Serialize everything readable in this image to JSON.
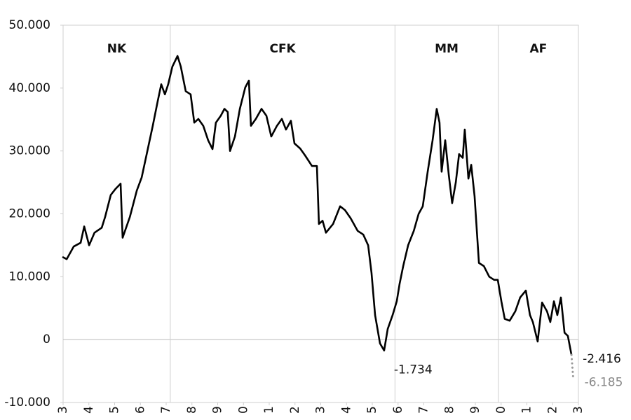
{
  "chart_data": {
    "type": "line",
    "xlim": [
      2003,
      2023
    ],
    "ylim": [
      -10000,
      50000
    ],
    "yticks": [
      {
        "value": -10000,
        "label": "-10.000"
      },
      0,
      {
        "value": 10000,
        "label": "10.000"
      },
      {
        "value": 20000,
        "label": "20.000"
      },
      {
        "value": 30000,
        "label": "30.000"
      },
      {
        "value": 40000,
        "label": "40.000"
      },
      {
        "value": 50000,
        "label": "50.000"
      }
    ],
    "xticks": [
      {
        "value": 2003,
        "label": "3"
      },
      {
        "value": 2004,
        "label": "4"
      },
      {
        "value": 2005,
        "label": "5"
      },
      {
        "value": 2006,
        "label": "6"
      },
      {
        "value": 2007,
        "label": "7"
      },
      {
        "value": 2008,
        "label": "8"
      },
      {
        "value": 2009,
        "label": "9"
      },
      {
        "value": 2010,
        "label": "0"
      },
      {
        "value": 2011,
        "label": "1"
      },
      {
        "value": 2012,
        "label": "2"
      },
      {
        "value": 2013,
        "label": "3"
      },
      {
        "value": 2014,
        "label": "4"
      },
      {
        "value": 2015,
        "label": "5"
      },
      {
        "value": 2016,
        "label": "6"
      },
      {
        "value": 2017,
        "label": "7"
      },
      {
        "value": 2018,
        "label": "8"
      },
      {
        "value": 2019,
        "label": "9"
      },
      {
        "value": 2020,
        "label": "0"
      },
      {
        "value": 2021,
        "label": "1"
      },
      {
        "value": 2022,
        "label": "2"
      },
      {
        "value": 2023,
        "label": "3"
      }
    ],
    "periods": [
      {
        "name": "NK",
        "start": 2003,
        "end": 2007.16
      },
      {
        "name": "CFK",
        "start": 2007.16,
        "end": 2015.88
      },
      {
        "name": "MM",
        "start": 2015.88,
        "end": 2019.89
      },
      {
        "name": "AF",
        "start": 2019.89,
        "end": 2023
      }
    ],
    "series": [
      {
        "color": "#000000",
        "style": "solid",
        "x": [
          2003,
          2003.14,
          2003.41,
          2003.68,
          2003.82,
          2004.01,
          2004.22,
          2004.5,
          2004.63,
          2004.85,
          2005.04,
          2005.23,
          2005.31,
          2005.59,
          2005.86,
          2006.05,
          2006.27,
          2006.48,
          2006.67,
          2006.81,
          2006.95,
          2007.08,
          2007.24,
          2007.44,
          2007.57,
          2007.76,
          2007.95,
          2008.09,
          2008.25,
          2008.44,
          2008.63,
          2008.8,
          2008.93,
          2009.12,
          2009.26,
          2009.39,
          2009.48,
          2009.67,
          2009.86,
          2010.07,
          2010.21,
          2010.29,
          2010.48,
          2010.7,
          2010.89,
          2011.08,
          2011.3,
          2011.49,
          2011.65,
          2011.84,
          2011.98,
          2012.2,
          2012.39,
          2012.66,
          2012.85,
          2012.93,
          2013.07,
          2013.2,
          2013.48,
          2013.75,
          2013.94,
          2014.16,
          2014.43,
          2014.65,
          2014.84,
          2014.97,
          2015.11,
          2015.3,
          2015.46,
          2015.6,
          2015.79,
          2015.95,
          2016.06,
          2016.2,
          2016.39,
          2016.61,
          2016.8,
          2016.96,
          2017.15,
          2017.34,
          2017.5,
          2017.61,
          2017.69,
          2017.83,
          2017.97,
          2018.1,
          2018.24,
          2018.37,
          2018.51,
          2018.59,
          2018.73,
          2018.84,
          2018.97,
          2019.14,
          2019.33,
          2019.54,
          2019.73,
          2019.87,
          2020.01,
          2020.14,
          2020.33,
          2020.55,
          2020.74,
          2020.96,
          2021.12,
          2021.23,
          2021.42,
          2021.59,
          2021.78,
          2021.91,
          2022.05,
          2022.18,
          2022.32,
          2022.46,
          2022.59,
          2022.73
        ],
        "values": [
          13100,
          12800,
          14800,
          15400,
          18000,
          15000,
          17000,
          17800,
          19500,
          23000,
          24000,
          24800,
          16200,
          19500,
          23700,
          25800,
          30000,
          34000,
          37900,
          40600,
          39000,
          40600,
          43400,
          45100,
          43400,
          39500,
          39000,
          34500,
          35100,
          34000,
          31700,
          30300,
          34500,
          35600,
          36700,
          36200,
          30000,
          32300,
          36700,
          40100,
          41200,
          34000,
          35100,
          36700,
          35600,
          32300,
          34000,
          35100,
          33400,
          34800,
          31200,
          30400,
          29300,
          27600,
          27600,
          18400,
          18900,
          17000,
          18400,
          21200,
          20600,
          19300,
          17300,
          16700,
          15000,
          10600,
          3900,
          -600,
          -1734,
          1700,
          3900,
          6100,
          8900,
          11700,
          15000,
          17300,
          20000,
          21200,
          26700,
          31700,
          36700,
          34500,
          26700,
          31700,
          26200,
          21700,
          25000,
          29500,
          28900,
          33400,
          25600,
          27800,
          22800,
          12200,
          11700,
          10000,
          9500,
          9500,
          6100,
          3300,
          3000,
          4500,
          6700,
          7800,
          3900,
          2800,
          -300,
          5900,
          4500,
          2800,
          6100,
          3900,
          6700,
          1100,
          600,
          -2416
        ]
      },
      {
        "color": "#999999",
        "style": "dotted",
        "x": [
          2022.73,
          2022.8
        ],
        "values": [
          -2416,
          -6185
        ]
      }
    ],
    "annotations": [
      {
        "x": 2015.46,
        "value": -1734,
        "label": "-1.734",
        "color": "#111111",
        "position": "below"
      },
      {
        "x": 2022.73,
        "value": -2416,
        "label": "-2.416",
        "color": "#111111",
        "position": "right"
      },
      {
        "x": 2022.8,
        "value": -6185,
        "label": "-6.185",
        "color": "#888888",
        "position": "right"
      }
    ]
  }
}
